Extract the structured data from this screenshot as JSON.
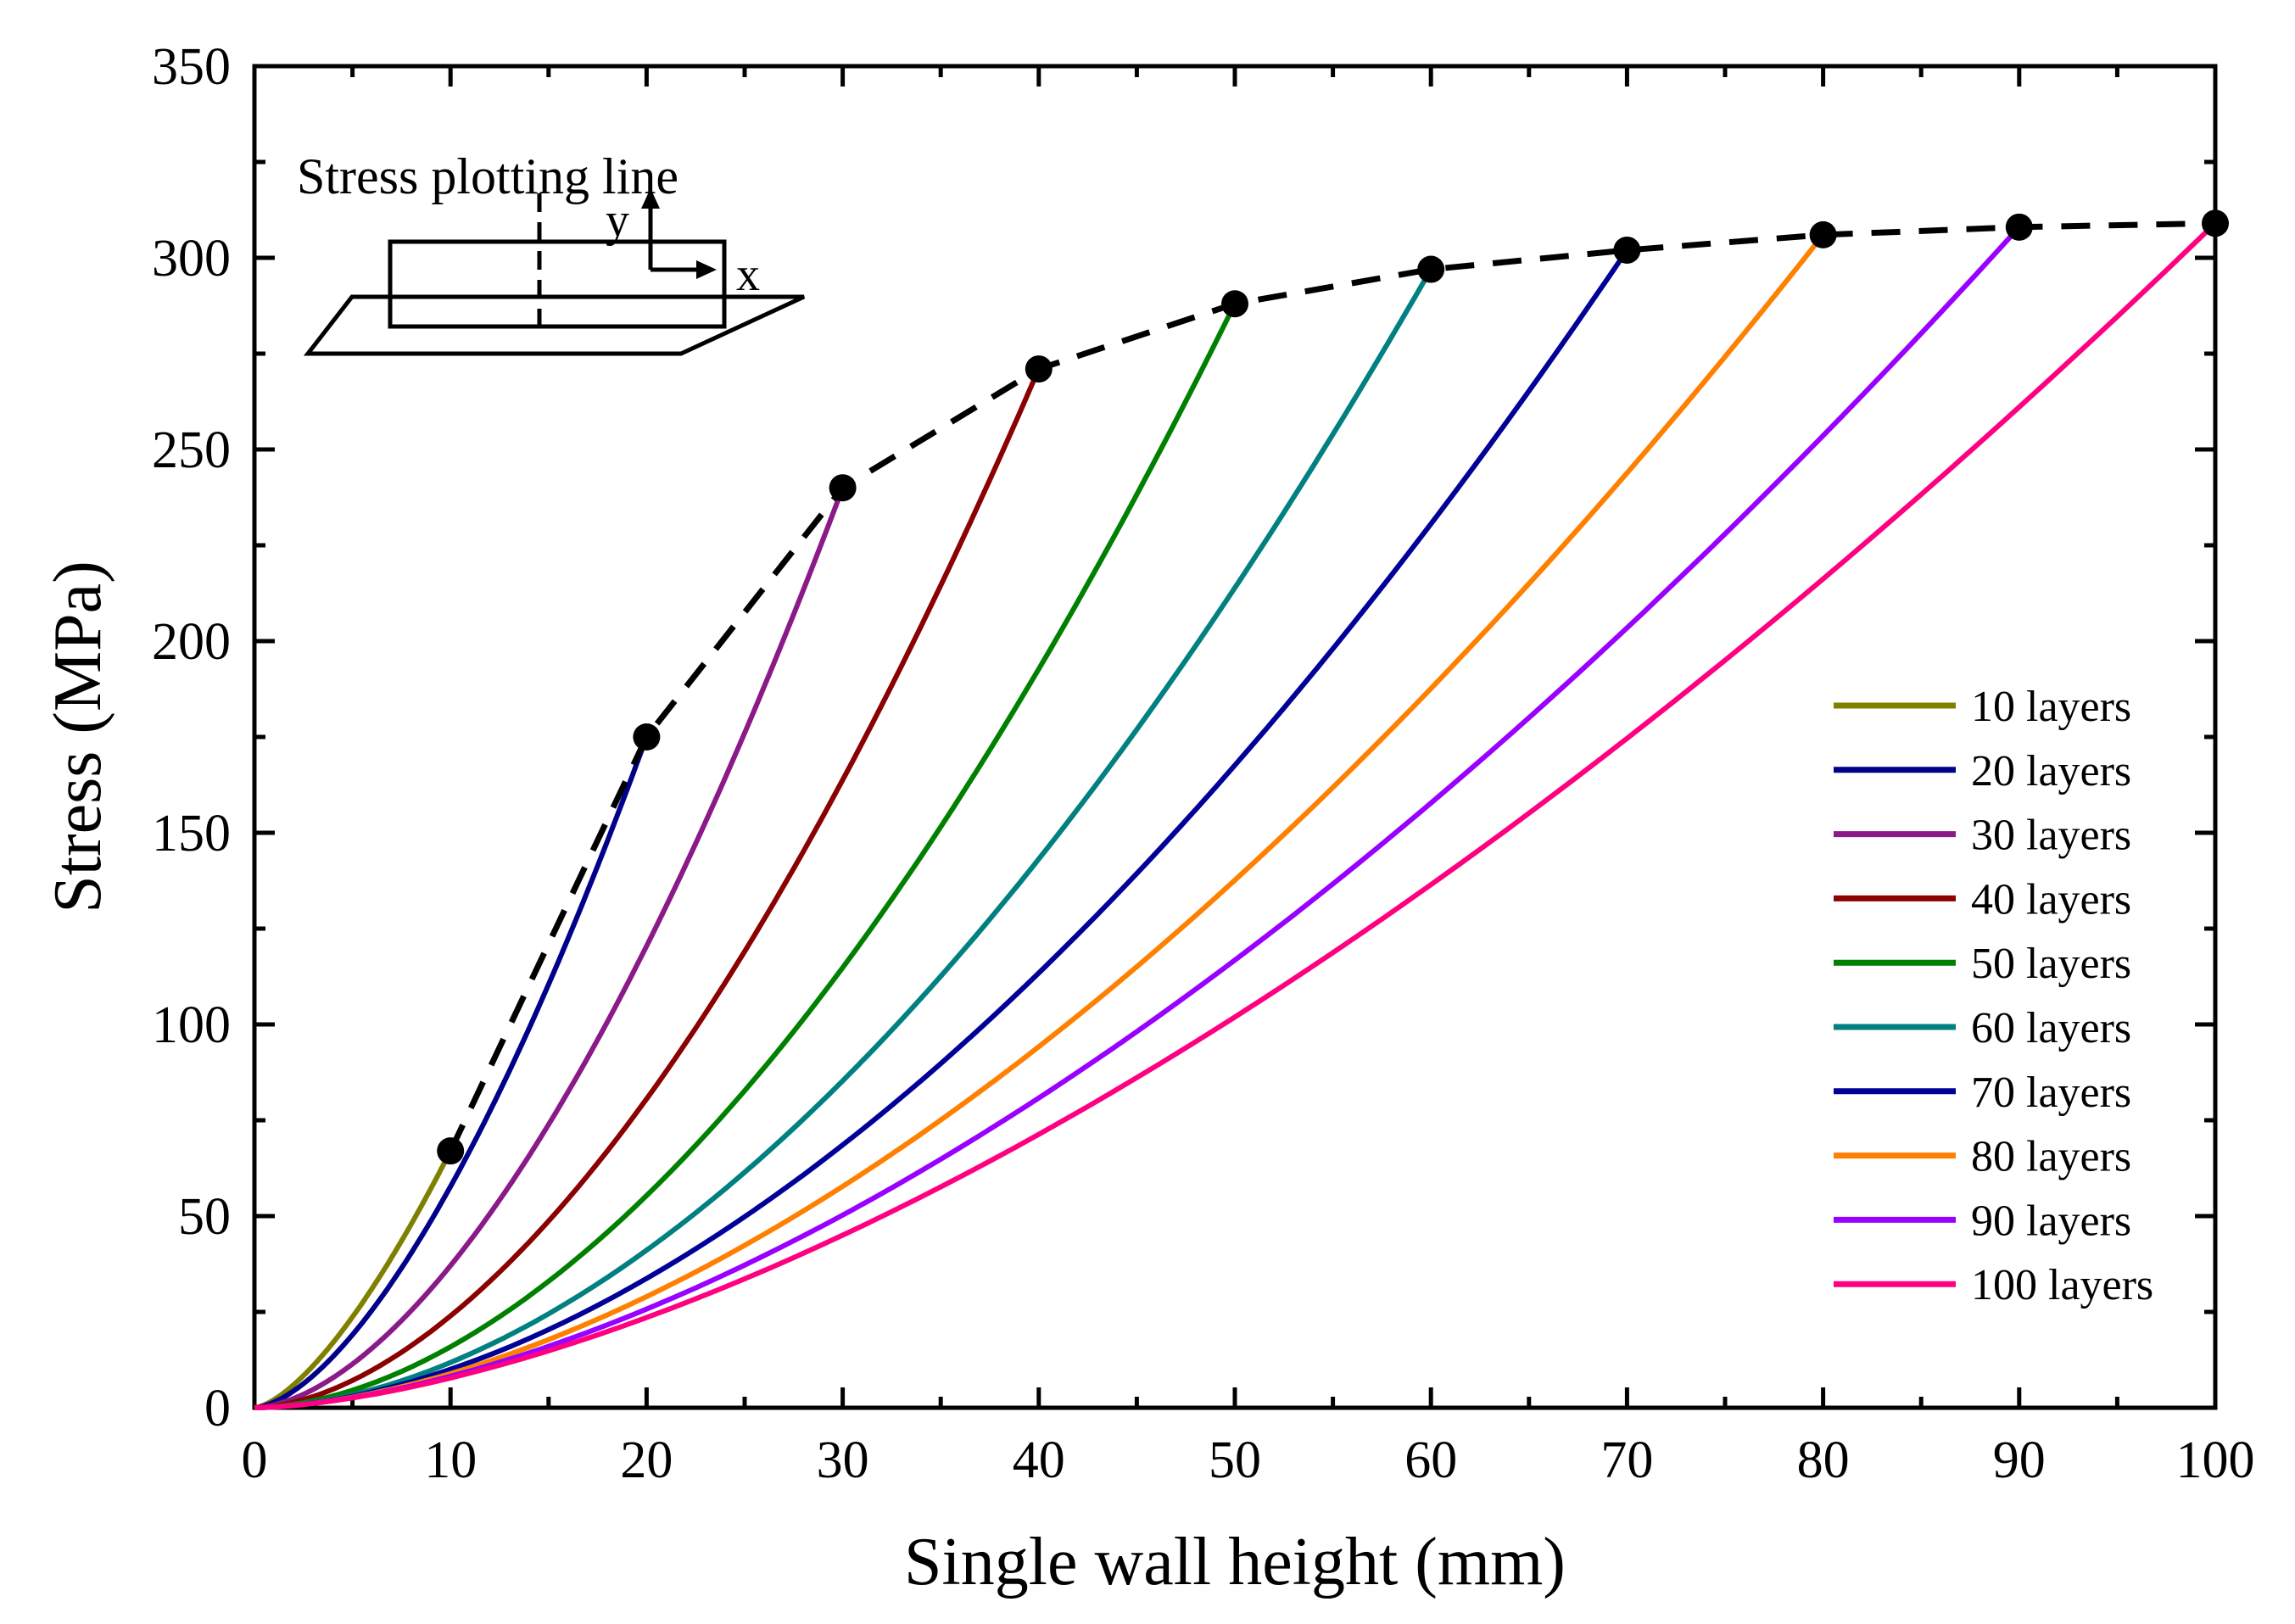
{
  "chart_data": {
    "type": "line",
    "title": "",
    "xlabel": "Single wall height (mm)",
    "ylabel": "Stress (MPa)",
    "xlim": [
      0,
      100
    ],
    "ylim": [
      0,
      350
    ],
    "xticks": [
      0,
      10,
      20,
      30,
      40,
      50,
      60,
      70,
      80,
      90,
      100
    ],
    "yticks": [
      0,
      50,
      100,
      150,
      200,
      250,
      300,
      350
    ],
    "x_tick_labels": [
      "0",
      "10",
      "20",
      "30",
      "40",
      "50",
      "60",
      "70",
      "80",
      "90",
      "100"
    ],
    "y_tick_labels": [
      "0",
      "50",
      "100",
      "150",
      "200",
      "250",
      "300",
      "350"
    ],
    "legend_position": "bottom-right",
    "series": [
      {
        "name": "10 layers",
        "color": "#808000",
        "x_end": 10,
        "y_end": 67,
        "exponent": 1.5
      },
      {
        "name": "20 layers",
        "color": "#00008B",
        "x_end": 20,
        "y_end": 175,
        "exponent": 1.6
      },
      {
        "name": "30 layers",
        "color": "#8B1A89",
        "x_end": 30,
        "y_end": 240,
        "exponent": 1.7
      },
      {
        "name": "40 layers",
        "color": "#8B0000",
        "x_end": 40,
        "y_end": 271,
        "exponent": 1.75
      },
      {
        "name": "50 layers",
        "color": "#008000",
        "x_end": 50,
        "y_end": 288,
        "exponent": 1.8
      },
      {
        "name": "60 layers",
        "color": "#008080",
        "x_end": 60,
        "y_end": 297,
        "exponent": 1.8
      },
      {
        "name": "70 layers",
        "color": "#000099",
        "x_end": 70,
        "y_end": 302,
        "exponent": 1.75
      },
      {
        "name": "80 layers",
        "color": "#FF8000",
        "x_end": 80,
        "y_end": 306,
        "exponent": 1.7
      },
      {
        "name": "90 layers",
        "color": "#9900FF",
        "x_end": 90,
        "y_end": 308,
        "exponent": 1.65
      },
      {
        "name": "100 layers",
        "color": "#FF0080",
        "x_end": 100,
        "y_end": 309,
        "exponent": 1.6
      }
    ],
    "envelope": {
      "style": "dashed",
      "color": "#000000",
      "x": [
        10,
        20,
        30,
        40,
        50,
        60,
        70,
        80,
        90,
        100
      ],
      "y": [
        67,
        175,
        240,
        271,
        288,
        297,
        302,
        306,
        308,
        309
      ]
    },
    "inset": {
      "title": "Stress plotting line",
      "y_axis_label": "y",
      "x_axis_label": "x"
    }
  }
}
